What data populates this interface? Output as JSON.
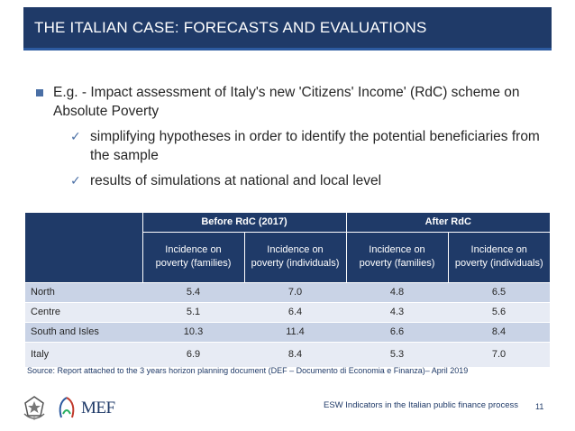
{
  "title": "THE ITALIAN CASE: FORECASTS AND EVALUATIONS",
  "bullet": "E.g. - Impact assessment of  Italy's new 'Citizens' Income' (RdC) scheme on Absolute Poverty",
  "subbullets": [
    "simplifying hypotheses in order to identify the potential beneficiaries from the sample",
    "results of simulations at national and local level"
  ],
  "table": {
    "group_headers": [
      "Before RdC (2017)",
      "After RdC"
    ],
    "col_headers": [
      "Incidence on poverty (families)",
      "Incidence on poverty (individuals)",
      "Incidence on poverty (families)",
      "Incidence on poverty (individuals)"
    ],
    "rows": [
      {
        "region": "North",
        "values": [
          "5.4",
          "7.0",
          "4.8",
          "6.5"
        ]
      },
      {
        "region": "Centre",
        "values": [
          "5.1",
          "6.4",
          "4.3",
          "5.6"
        ]
      },
      {
        "region": "South and Isles",
        "values": [
          "10.3",
          "11.4",
          "6.6",
          "8.4"
        ]
      },
      {
        "region": "Italy",
        "values": [
          "6.9",
          "8.4",
          "5.3",
          "7.0"
        ]
      }
    ]
  },
  "source": "Source: Report attached to the 3 years horizon planning document (DEF – Documento di Economia e Finanza)– April 2019",
  "footer": {
    "logo_text": "MEF",
    "caption": "ESW Indicators in the Italian public finance process",
    "page": "11"
  },
  "colors": {
    "primary": "#1f3a68",
    "row_dark": "#c9d3e6",
    "row_light": "#e7ebf4"
  },
  "icons": [
    "square-bullet-icon",
    "checkmark-icon",
    "emblem-of-italy-icon",
    "mef-logo-icon"
  ]
}
